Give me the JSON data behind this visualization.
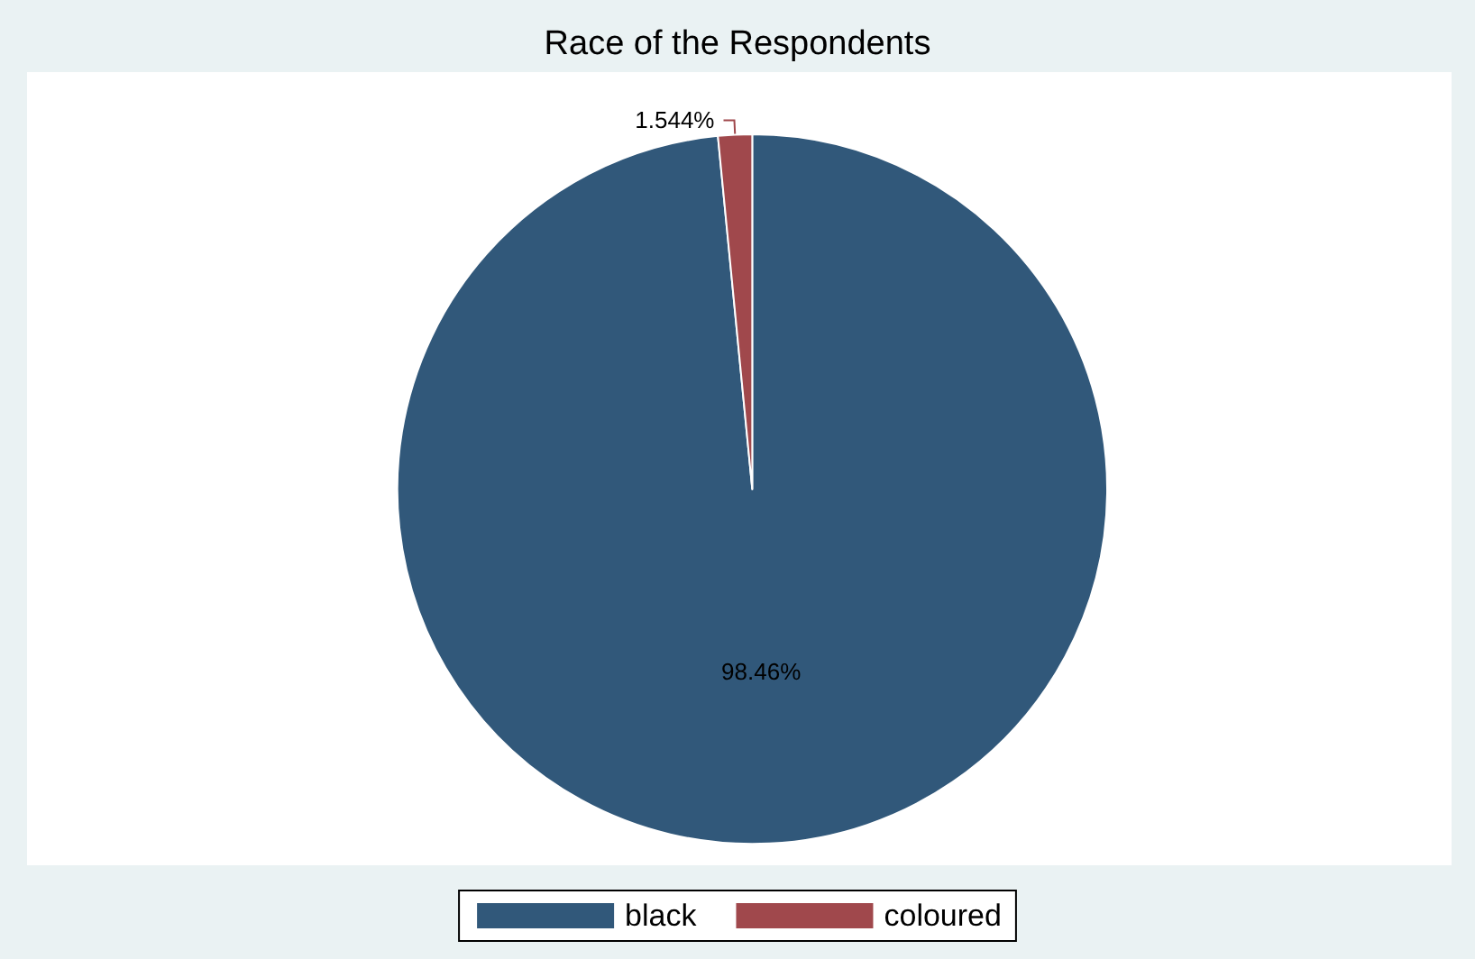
{
  "chart_data": {
    "type": "pie",
    "title": "Race of the Respondents",
    "categories": [
      "black",
      "coloured"
    ],
    "values": [
      98.46,
      1.544
    ],
    "colors": [
      "#31587a",
      "#a0484c"
    ],
    "value_labels": [
      "98.46%",
      "1.544%"
    ],
    "legend": "bottom"
  }
}
